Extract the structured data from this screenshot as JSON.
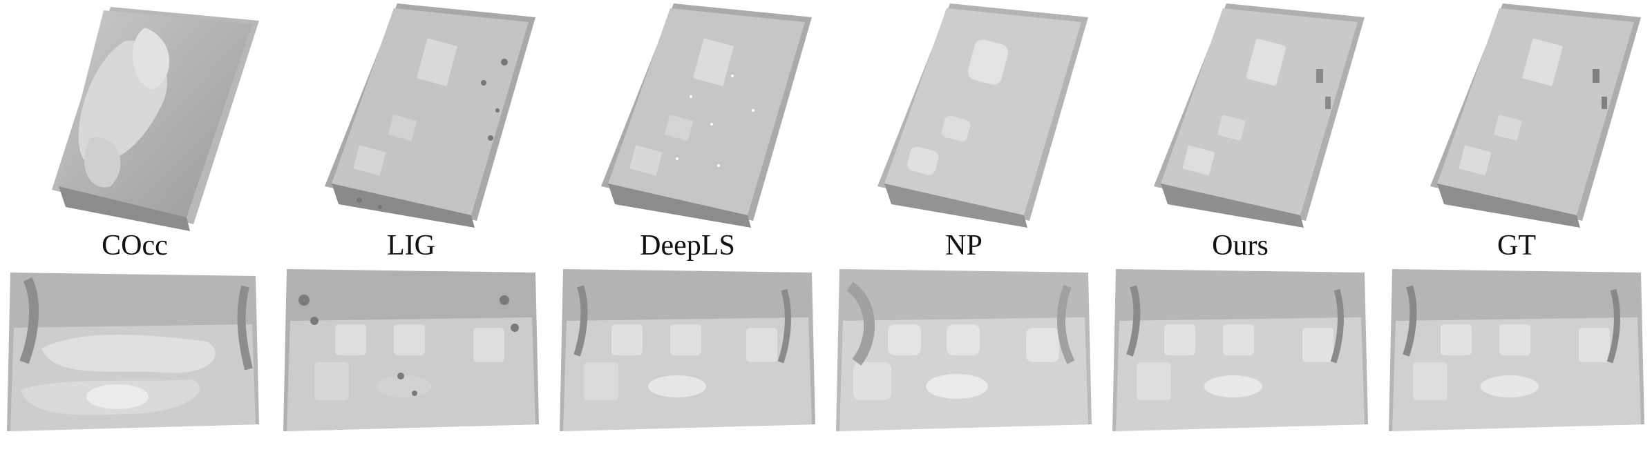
{
  "figure": {
    "columns": [
      {
        "id": "cocc",
        "label": "COcc"
      },
      {
        "id": "lig",
        "label": "LIG"
      },
      {
        "id": "deepls",
        "label": "DeepLS"
      },
      {
        "id": "np",
        "label": "NP"
      },
      {
        "id": "ours",
        "label": "Ours"
      },
      {
        "id": "gt",
        "label": "GT"
      }
    ]
  }
}
